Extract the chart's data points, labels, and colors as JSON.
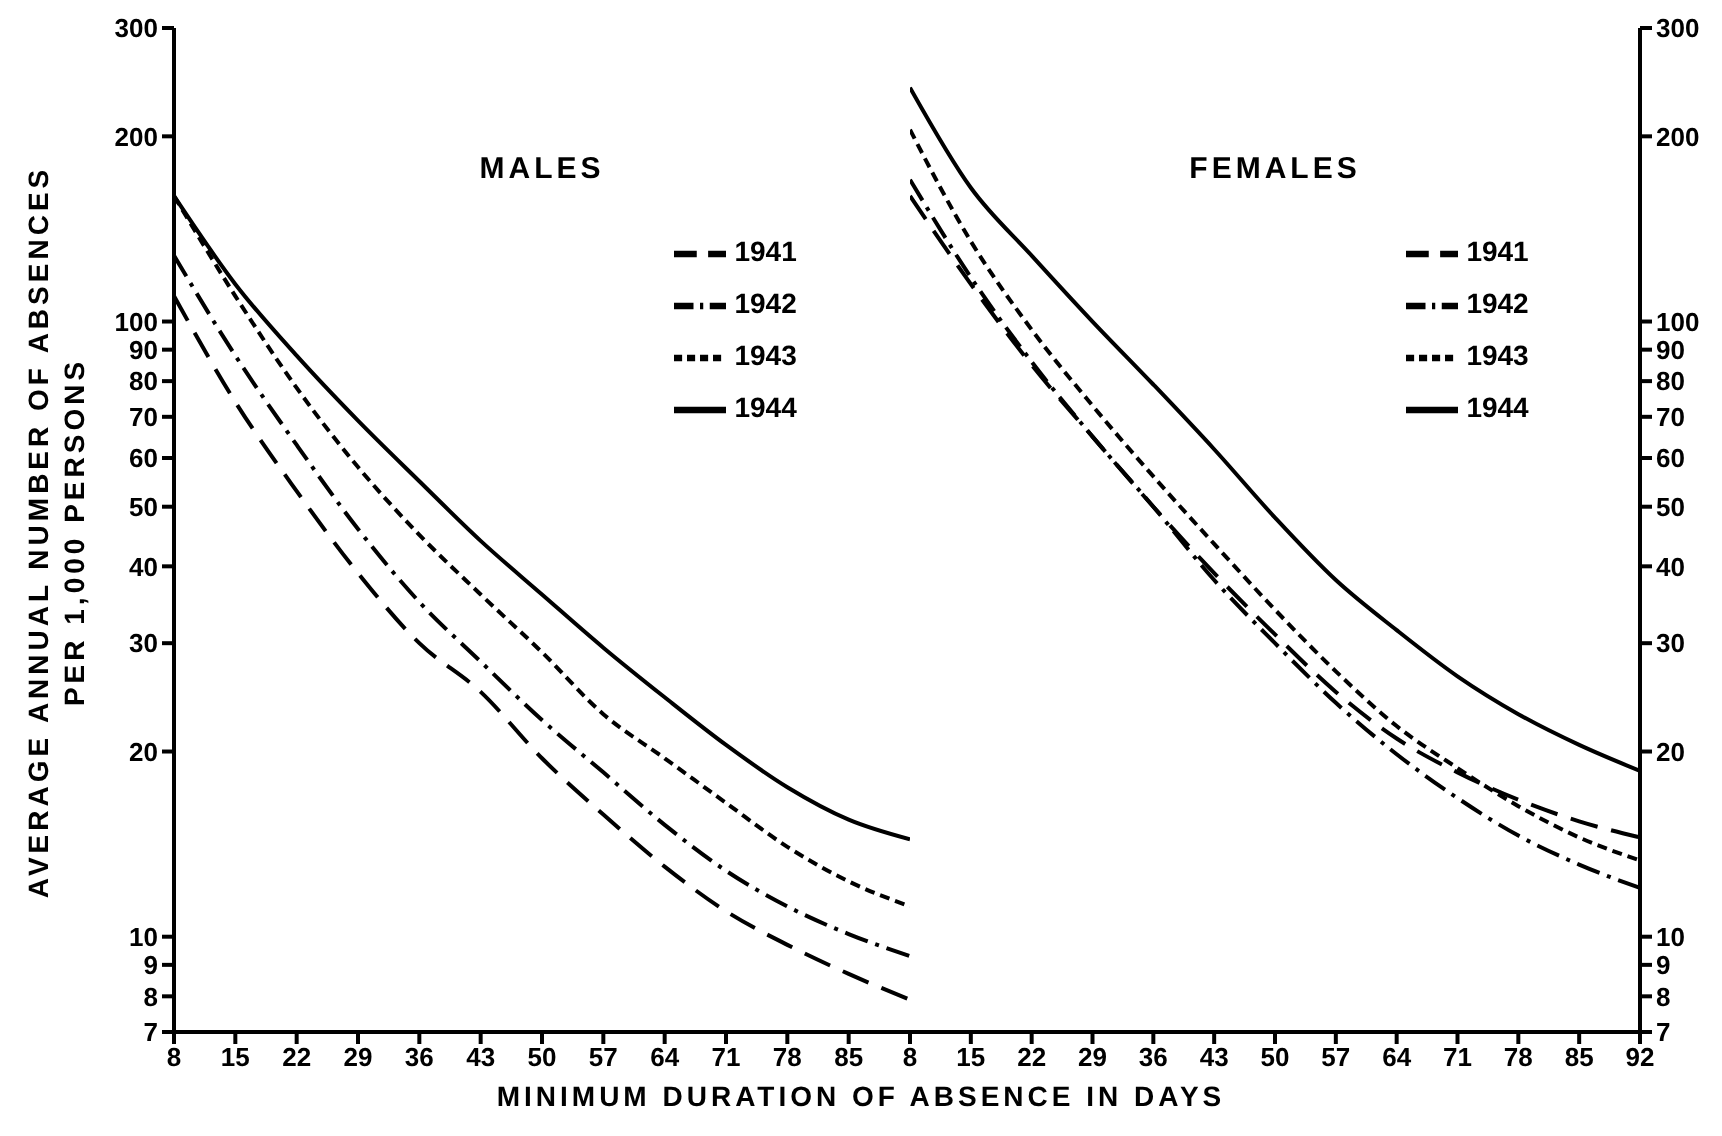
{
  "chart_data": [
    {
      "type": "line",
      "title": "MALES",
      "xlabel": "MINIMUM DURATION OF ABSENCE IN DAYS",
      "ylabel": "AVERAGE ANNUAL NUMBER OF ABSENCES\nPER 1,000 PERSONS",
      "log": "y",
      "legend": "top right",
      "x": [
        8,
        15,
        22,
        29,
        36,
        43,
        50,
        57,
        64,
        71,
        78,
        85,
        92
      ],
      "xlim": [
        8,
        92
      ],
      "xticks": [
        8,
        15,
        22,
        29,
        36,
        43,
        50,
        57,
        64,
        71,
        78,
        85
      ],
      "ylim": [
        7,
        300
      ],
      "yticks": [
        7,
        8,
        9,
        10,
        20,
        30,
        40,
        50,
        60,
        70,
        80,
        90,
        100,
        200,
        300
      ],
      "series": [
        {
          "name": "1941",
          "color": "#000000",
          "line_style": "dashed",
          "values": [
            110,
            74,
            53,
            39,
            30,
            25,
            19.5,
            15.8,
            13,
            11,
            9.7,
            8.7,
            7.9
          ]
        },
        {
          "name": "1942",
          "color": "#000000",
          "line_style": "dashdot",
          "values": [
            128,
            88,
            63,
            46,
            35,
            28,
            22.5,
            18.5,
            15.2,
            12.8,
            11.2,
            10.1,
            9.3
          ]
        },
        {
          "name": "1943",
          "color": "#000000",
          "line_style": "dotted",
          "values": [
            160,
            110,
            78,
            58,
            45,
            36,
            29,
            23,
            19.5,
            16.5,
            14,
            12.3,
            11.2
          ]
        },
        {
          "name": "1944",
          "color": "#000000",
          "line_style": "solid",
          "values": [
            160,
            115,
            88,
            69,
            55,
            44,
            36,
            29.5,
            24.5,
            20.5,
            17.5,
            15.5,
            14.4
          ]
        }
      ]
    },
    {
      "type": "line",
      "title": "FEMALES",
      "log": "y",
      "legend": "top right",
      "x": [
        8,
        15,
        22,
        29,
        36,
        43,
        50,
        57,
        64,
        71,
        78,
        85,
        92
      ],
      "xlim": [
        8,
        92
      ],
      "xticks": [
        8,
        15,
        22,
        29,
        36,
        43,
        50,
        57,
        64,
        71,
        78,
        85,
        92
      ],
      "ylim": [
        7,
        300
      ],
      "yticks": [
        7,
        8,
        9,
        10,
        20,
        30,
        40,
        50,
        60,
        70,
        80,
        90,
        100,
        200,
        300
      ],
      "series": [
        {
          "name": "1941",
          "color": "#000000",
          "line_style": "dashed",
          "values": [
            160,
            115,
            85,
            65,
            50,
            39,
            31,
            25,
            21,
            18.5,
            16.7,
            15.4,
            14.5
          ]
        },
        {
          "name": "1942",
          "color": "#000000",
          "line_style": "dashdot",
          "values": [
            170,
            118,
            86,
            65,
            50,
            38,
            30,
            24,
            19.8,
            16.8,
            14.6,
            13.1,
            12
          ]
        },
        {
          "name": "1943",
          "color": "#000000",
          "line_style": "dotted",
          "values": [
            205,
            135,
            97,
            73,
            56,
            43.5,
            34,
            27,
            22,
            18.8,
            16.3,
            14.5,
            13.3
          ]
        },
        {
          "name": "1944",
          "color": "#000000",
          "line_style": "solid",
          "values": [
            240,
            165,
            128,
            100,
            79,
            62,
            48,
            38,
            31.5,
            26.5,
            23,
            20.5,
            18.6
          ]
        }
      ]
    }
  ]
}
